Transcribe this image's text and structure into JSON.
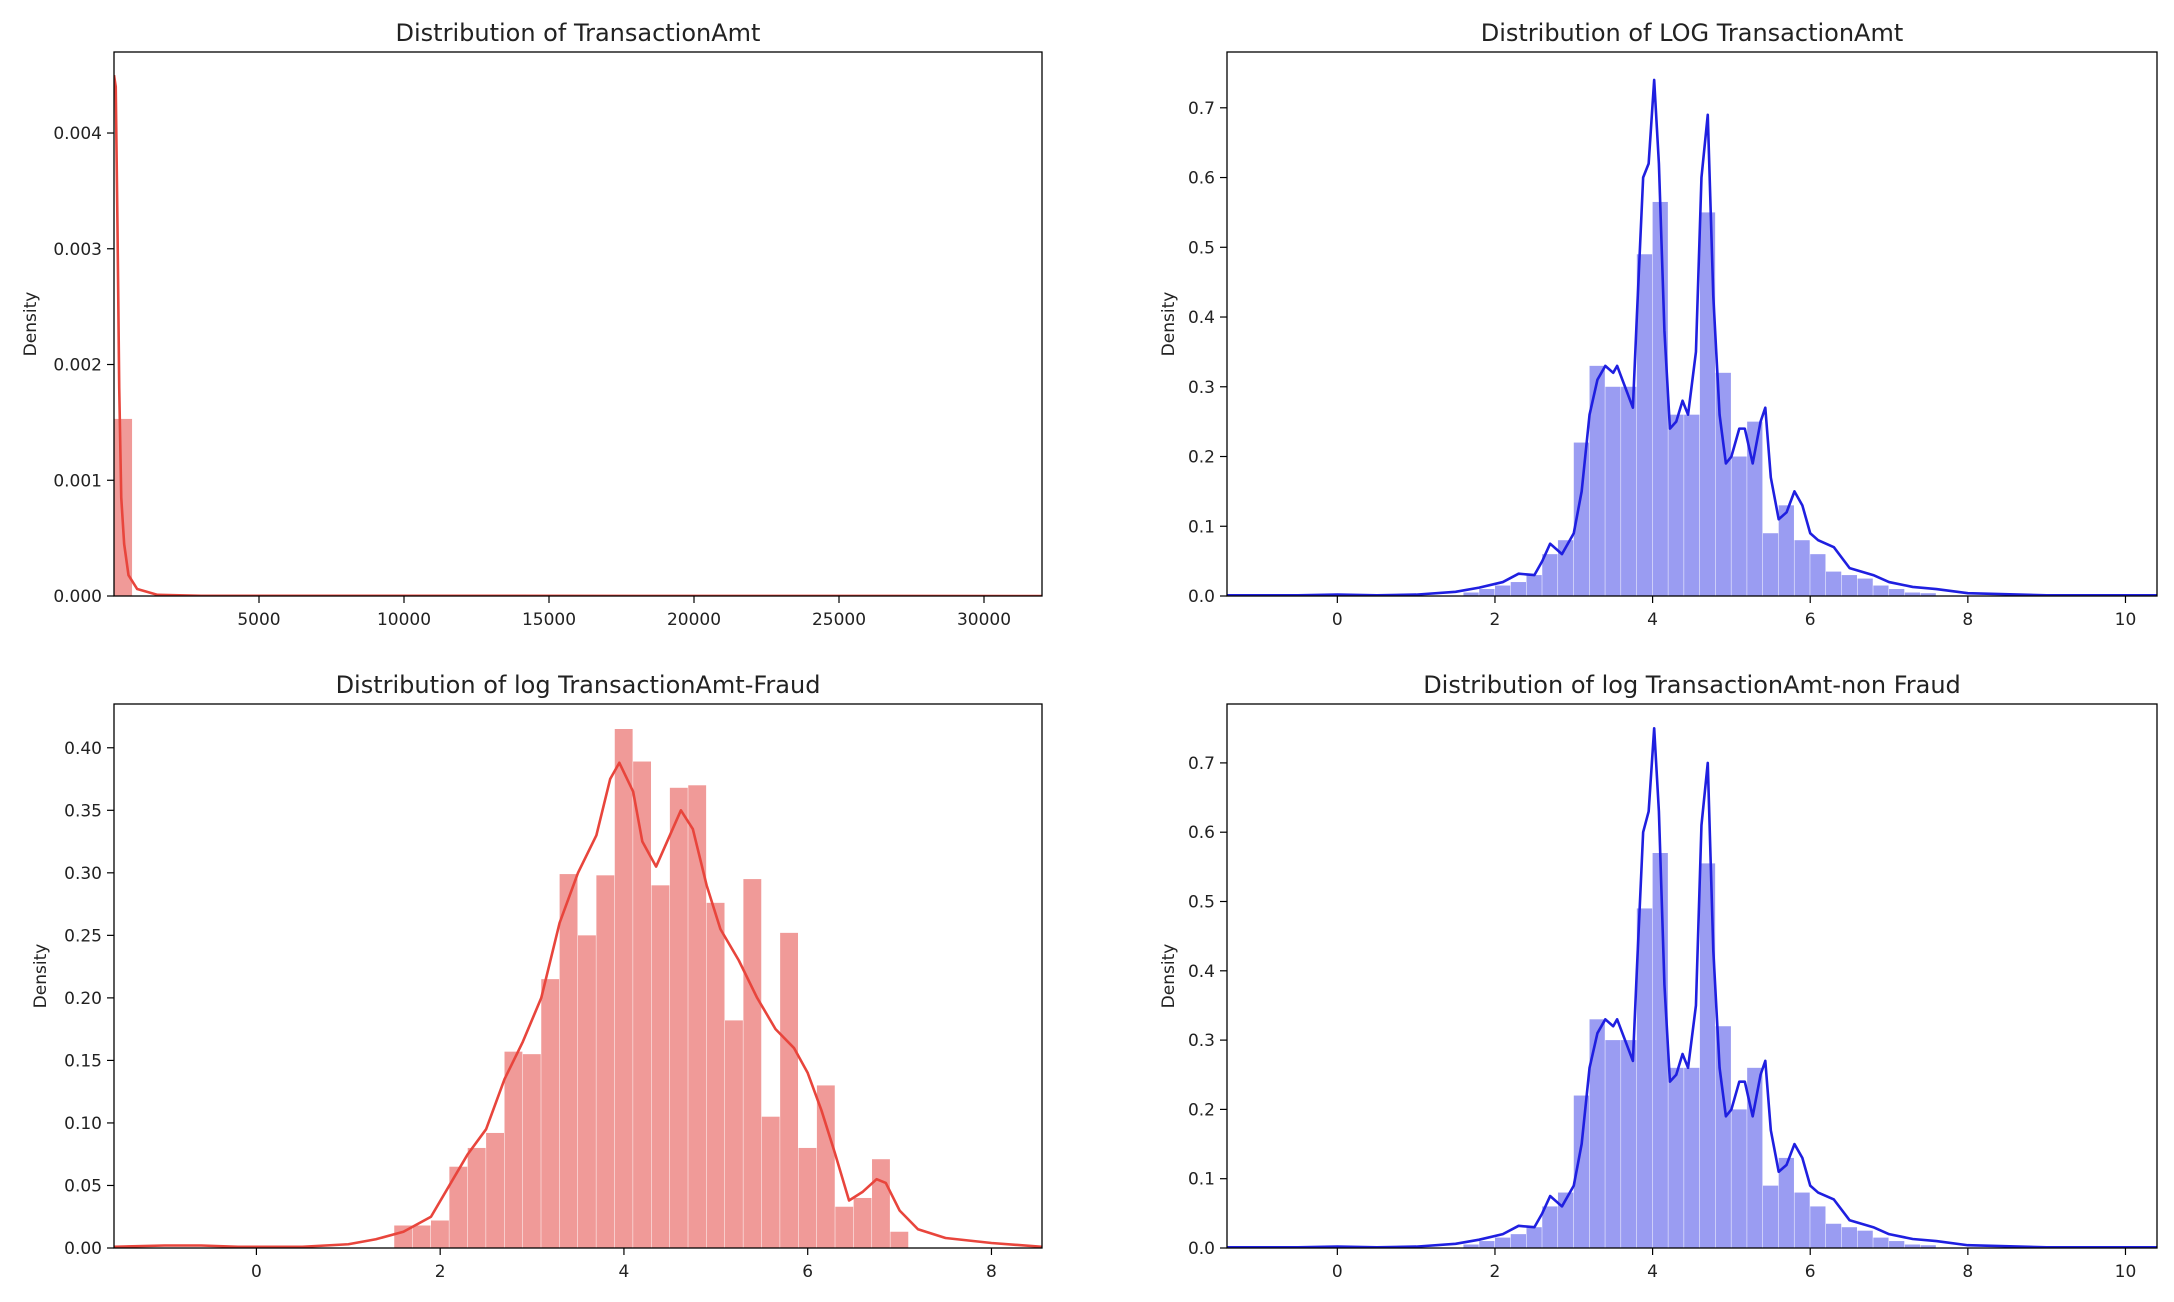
{
  "colors": {
    "red_line": "#e8453c",
    "red_bar": "#f09a98",
    "blue_line": "#1f1fe0",
    "blue_bar": "#9a9cf2",
    "axis": "#000000"
  },
  "chart_data": [
    {
      "type": "bar",
      "title": "Distribution of TransactionAmt",
      "xlabel": "",
      "ylabel": "Density",
      "xlim": [
        0,
        32000
      ],
      "ylim": [
        0,
        0.0047
      ],
      "xticks": [
        5000,
        10000,
        15000,
        20000,
        25000,
        30000
      ],
      "xtick_labels": [
        "5000",
        "10000",
        "15000",
        "20000",
        "25000",
        "30000"
      ],
      "yticks": [
        0,
        0.001,
        0.002,
        0.003,
        0.004
      ],
      "ytick_labels": [
        "0.000",
        "0.001",
        "0.002",
        "0.003",
        "0.004"
      ],
      "line_color": "red_line",
      "bar_color": "red_bar",
      "bin_width": 640,
      "bins": [
        [
          0,
          0.00153
        ]
      ],
      "kde": [
        [
          0,
          0.0045
        ],
        [
          60,
          0.0044
        ],
        [
          120,
          0.0032
        ],
        [
          180,
          0.0018
        ],
        [
          250,
          0.00085
        ],
        [
          350,
          0.00045
        ],
        [
          500,
          0.00018
        ],
        [
          800,
          6e-05
        ],
        [
          1500,
          1e-05
        ],
        [
          3000,
          2e-06
        ],
        [
          32000,
          0
        ]
      ]
    },
    {
      "type": "bar",
      "title": "Distribution of LOG TransactionAmt",
      "xlabel": "",
      "ylabel": "Density",
      "xlim": [
        -1.4,
        10.4
      ],
      "ylim": [
        0,
        0.78
      ],
      "xticks": [
        0,
        2,
        4,
        6,
        8,
        10
      ],
      "xtick_labels": [
        "0",
        "2",
        "4",
        "6",
        "8",
        "10"
      ],
      "yticks": [
        0,
        0.1,
        0.2,
        0.3,
        0.4,
        0.5,
        0.6,
        0.7
      ],
      "ytick_labels": [
        "0.0",
        "0.1",
        "0.2",
        "0.3",
        "0.4",
        "0.5",
        "0.6",
        "0.7"
      ],
      "line_color": "blue_line",
      "bar_color": "blue_bar",
      "bin_width": 0.2,
      "bins": [
        [
          1.6,
          0.005
        ],
        [
          1.8,
          0.01
        ],
        [
          2.0,
          0.015
        ],
        [
          2.2,
          0.02
        ],
        [
          2.4,
          0.03
        ],
        [
          2.6,
          0.06
        ],
        [
          2.8,
          0.08
        ],
        [
          3.0,
          0.22
        ],
        [
          3.2,
          0.33
        ],
        [
          3.4,
          0.3
        ],
        [
          3.6,
          0.3
        ],
        [
          3.8,
          0.49
        ],
        [
          4.0,
          0.565
        ],
        [
          4.2,
          0.26
        ],
        [
          4.4,
          0.26
        ],
        [
          4.6,
          0.55
        ],
        [
          4.8,
          0.32
        ],
        [
          5.0,
          0.2
        ],
        [
          5.2,
          0.25
        ],
        [
          5.4,
          0.09
        ],
        [
          5.6,
          0.13
        ],
        [
          5.8,
          0.08
        ],
        [
          6.0,
          0.06
        ],
        [
          6.2,
          0.035
        ],
        [
          6.4,
          0.03
        ],
        [
          6.6,
          0.025
        ],
        [
          6.8,
          0.015
        ],
        [
          7.0,
          0.01
        ],
        [
          7.2,
          0.005
        ],
        [
          7.4,
          0.004
        ]
      ],
      "kde": [
        [
          -1.4,
          0.001
        ],
        [
          -0.5,
          0.001
        ],
        [
          0,
          0.002
        ],
        [
          0.5,
          0.001
        ],
        [
          1.0,
          0.002
        ],
        [
          1.5,
          0.006
        ],
        [
          1.8,
          0.012
        ],
        [
          2.1,
          0.02
        ],
        [
          2.3,
          0.032
        ],
        [
          2.5,
          0.03
        ],
        [
          2.6,
          0.05
        ],
        [
          2.7,
          0.075
        ],
        [
          2.85,
          0.06
        ],
        [
          3.0,
          0.09
        ],
        [
          3.1,
          0.15
        ],
        [
          3.2,
          0.26
        ],
        [
          3.3,
          0.31
        ],
        [
          3.4,
          0.33
        ],
        [
          3.5,
          0.32
        ],
        [
          3.55,
          0.33
        ],
        [
          3.65,
          0.3
        ],
        [
          3.75,
          0.27
        ],
        [
          3.8,
          0.4
        ],
        [
          3.88,
          0.6
        ],
        [
          3.95,
          0.62
        ],
        [
          4.02,
          0.74
        ],
        [
          4.08,
          0.62
        ],
        [
          4.15,
          0.38
        ],
        [
          4.22,
          0.24
        ],
        [
          4.3,
          0.25
        ],
        [
          4.38,
          0.28
        ],
        [
          4.45,
          0.26
        ],
        [
          4.55,
          0.35
        ],
        [
          4.62,
          0.6
        ],
        [
          4.7,
          0.69
        ],
        [
          4.77,
          0.43
        ],
        [
          4.85,
          0.26
        ],
        [
          4.93,
          0.19
        ],
        [
          5.0,
          0.2
        ],
        [
          5.1,
          0.24
        ],
        [
          5.17,
          0.24
        ],
        [
          5.27,
          0.19
        ],
        [
          5.37,
          0.25
        ],
        [
          5.43,
          0.27
        ],
        [
          5.5,
          0.17
        ],
        [
          5.6,
          0.11
        ],
        [
          5.7,
          0.12
        ],
        [
          5.8,
          0.15
        ],
        [
          5.9,
          0.13
        ],
        [
          6.0,
          0.09
        ],
        [
          6.1,
          0.08
        ],
        [
          6.3,
          0.07
        ],
        [
          6.5,
          0.04
        ],
        [
          6.8,
          0.03
        ],
        [
          7.0,
          0.02
        ],
        [
          7.3,
          0.013
        ],
        [
          7.6,
          0.01
        ],
        [
          8.0,
          0.004
        ],
        [
          9.0,
          0.001
        ],
        [
          10.4,
          0.001
        ]
      ]
    },
    {
      "type": "bar",
      "title": "Distribution of log TransactionAmt-Fraud",
      "xlabel": "",
      "ylabel": "Density",
      "xlim": [
        -1.55,
        8.55
      ],
      "ylim": [
        0,
        0.435
      ],
      "xticks": [
        0,
        2,
        4,
        6,
        8
      ],
      "xtick_labels": [
        "0",
        "2",
        "4",
        "6",
        "8"
      ],
      "yticks": [
        0,
        0.05,
        0.1,
        0.15,
        0.2,
        0.25,
        0.3,
        0.35,
        0.4
      ],
      "ytick_labels": [
        "0.00",
        "0.05",
        "0.10",
        "0.15",
        "0.20",
        "0.25",
        "0.30",
        "0.35",
        "0.40"
      ],
      "line_color": "red_line",
      "bar_color": "red_bar",
      "bin_width": 0.2,
      "bins": [
        [
          1.5,
          0.018
        ],
        [
          1.7,
          0.018
        ],
        [
          1.9,
          0.022
        ],
        [
          2.1,
          0.065
        ],
        [
          2.3,
          0.08
        ],
        [
          2.5,
          0.092
        ],
        [
          2.7,
          0.157
        ],
        [
          2.9,
          0.155
        ],
        [
          3.1,
          0.215
        ],
        [
          3.3,
          0.299
        ],
        [
          3.5,
          0.25
        ],
        [
          3.7,
          0.298
        ],
        [
          3.9,
          0.415
        ],
        [
          4.1,
          0.389
        ],
        [
          4.3,
          0.29
        ],
        [
          4.5,
          0.368
        ],
        [
          4.7,
          0.37
        ],
        [
          4.9,
          0.276
        ],
        [
          5.1,
          0.182
        ],
        [
          5.3,
          0.295
        ],
        [
          5.5,
          0.105
        ],
        [
          5.7,
          0.252
        ],
        [
          5.9,
          0.08
        ],
        [
          6.1,
          0.13
        ],
        [
          6.3,
          0.033
        ],
        [
          6.5,
          0.04
        ],
        [
          6.7,
          0.071
        ],
        [
          6.9,
          0.013
        ]
      ],
      "kde": [
        [
          -1.55,
          0.001
        ],
        [
          -1.0,
          0.002
        ],
        [
          -0.6,
          0.002
        ],
        [
          -0.2,
          0.001
        ],
        [
          0.5,
          0.001
        ],
        [
          1.0,
          0.003
        ],
        [
          1.3,
          0.007
        ],
        [
          1.6,
          0.013
        ],
        [
          1.9,
          0.025
        ],
        [
          2.1,
          0.05
        ],
        [
          2.3,
          0.075
        ],
        [
          2.5,
          0.095
        ],
        [
          2.7,
          0.135
        ],
        [
          2.9,
          0.165
        ],
        [
          3.1,
          0.2
        ],
        [
          3.3,
          0.26
        ],
        [
          3.5,
          0.3
        ],
        [
          3.7,
          0.33
        ],
        [
          3.85,
          0.375
        ],
        [
          3.95,
          0.388
        ],
        [
          4.1,
          0.365
        ],
        [
          4.2,
          0.325
        ],
        [
          4.35,
          0.305
        ],
        [
          4.5,
          0.33
        ],
        [
          4.62,
          0.35
        ],
        [
          4.75,
          0.335
        ],
        [
          4.9,
          0.29
        ],
        [
          5.05,
          0.255
        ],
        [
          5.25,
          0.23
        ],
        [
          5.45,
          0.2
        ],
        [
          5.65,
          0.175
        ],
        [
          5.85,
          0.16
        ],
        [
          6.0,
          0.14
        ],
        [
          6.15,
          0.11
        ],
        [
          6.3,
          0.075
        ],
        [
          6.45,
          0.038
        ],
        [
          6.6,
          0.045
        ],
        [
          6.75,
          0.055
        ],
        [
          6.85,
          0.052
        ],
        [
          7.0,
          0.03
        ],
        [
          7.2,
          0.015
        ],
        [
          7.5,
          0.008
        ],
        [
          8.0,
          0.004
        ],
        [
          8.55,
          0.001
        ]
      ]
    },
    {
      "type": "bar",
      "title": "Distribution of log TransactionAmt-non Fraud",
      "xlabel": "",
      "ylabel": "Density",
      "xlim": [
        -1.4,
        10.4
      ],
      "ylim": [
        0,
        0.785
      ],
      "xticks": [
        0,
        2,
        4,
        6,
        8,
        10
      ],
      "xtick_labels": [
        "0",
        "2",
        "4",
        "6",
        "8",
        "10"
      ],
      "yticks": [
        0,
        0.1,
        0.2,
        0.3,
        0.4,
        0.5,
        0.6,
        0.7
      ],
      "ytick_labels": [
        "0.0",
        "0.1",
        "0.2",
        "0.3",
        "0.4",
        "0.5",
        "0.6",
        "0.7"
      ],
      "line_color": "blue_line",
      "bar_color": "blue_bar",
      "bin_width": 0.2,
      "bins": [
        [
          1.6,
          0.005
        ],
        [
          1.8,
          0.01
        ],
        [
          2.0,
          0.015
        ],
        [
          2.2,
          0.02
        ],
        [
          2.4,
          0.03
        ],
        [
          2.6,
          0.06
        ],
        [
          2.8,
          0.08
        ],
        [
          3.0,
          0.22
        ],
        [
          3.2,
          0.33
        ],
        [
          3.4,
          0.3
        ],
        [
          3.6,
          0.3
        ],
        [
          3.8,
          0.49
        ],
        [
          4.0,
          0.57
        ],
        [
          4.2,
          0.26
        ],
        [
          4.4,
          0.26
        ],
        [
          4.6,
          0.555
        ],
        [
          4.8,
          0.32
        ],
        [
          5.0,
          0.2
        ],
        [
          5.2,
          0.26
        ],
        [
          5.4,
          0.09
        ],
        [
          5.6,
          0.13
        ],
        [
          5.8,
          0.08
        ],
        [
          6.0,
          0.06
        ],
        [
          6.2,
          0.035
        ],
        [
          6.4,
          0.03
        ],
        [
          6.6,
          0.025
        ],
        [
          6.8,
          0.015
        ],
        [
          7.0,
          0.01
        ],
        [
          7.2,
          0.005
        ],
        [
          7.4,
          0.004
        ]
      ],
      "kde": [
        [
          -1.4,
          0.001
        ],
        [
          -0.5,
          0.001
        ],
        [
          0,
          0.002
        ],
        [
          0.5,
          0.001
        ],
        [
          1.0,
          0.002
        ],
        [
          1.5,
          0.006
        ],
        [
          1.8,
          0.012
        ],
        [
          2.1,
          0.02
        ],
        [
          2.3,
          0.032
        ],
        [
          2.5,
          0.03
        ],
        [
          2.6,
          0.05
        ],
        [
          2.7,
          0.075
        ],
        [
          2.85,
          0.06
        ],
        [
          3.0,
          0.09
        ],
        [
          3.1,
          0.15
        ],
        [
          3.2,
          0.26
        ],
        [
          3.3,
          0.31
        ],
        [
          3.4,
          0.33
        ],
        [
          3.5,
          0.32
        ],
        [
          3.55,
          0.33
        ],
        [
          3.65,
          0.3
        ],
        [
          3.75,
          0.27
        ],
        [
          3.8,
          0.4
        ],
        [
          3.88,
          0.6
        ],
        [
          3.95,
          0.63
        ],
        [
          4.02,
          0.75
        ],
        [
          4.08,
          0.63
        ],
        [
          4.15,
          0.38
        ],
        [
          4.22,
          0.24
        ],
        [
          4.3,
          0.25
        ],
        [
          4.38,
          0.28
        ],
        [
          4.45,
          0.26
        ],
        [
          4.55,
          0.35
        ],
        [
          4.62,
          0.61
        ],
        [
          4.7,
          0.7
        ],
        [
          4.77,
          0.43
        ],
        [
          4.85,
          0.26
        ],
        [
          4.93,
          0.19
        ],
        [
          5.0,
          0.2
        ],
        [
          5.1,
          0.24
        ],
        [
          5.17,
          0.24
        ],
        [
          5.27,
          0.19
        ],
        [
          5.37,
          0.25
        ],
        [
          5.43,
          0.27
        ],
        [
          5.5,
          0.17
        ],
        [
          5.6,
          0.11
        ],
        [
          5.7,
          0.12
        ],
        [
          5.8,
          0.15
        ],
        [
          5.9,
          0.13
        ],
        [
          6.0,
          0.09
        ],
        [
          6.1,
          0.08
        ],
        [
          6.3,
          0.07
        ],
        [
          6.5,
          0.04
        ],
        [
          6.8,
          0.03
        ],
        [
          7.0,
          0.02
        ],
        [
          7.3,
          0.013
        ],
        [
          7.6,
          0.01
        ],
        [
          8.0,
          0.004
        ],
        [
          9.0,
          0.001
        ],
        [
          10.4,
          0.001
        ]
      ]
    }
  ]
}
